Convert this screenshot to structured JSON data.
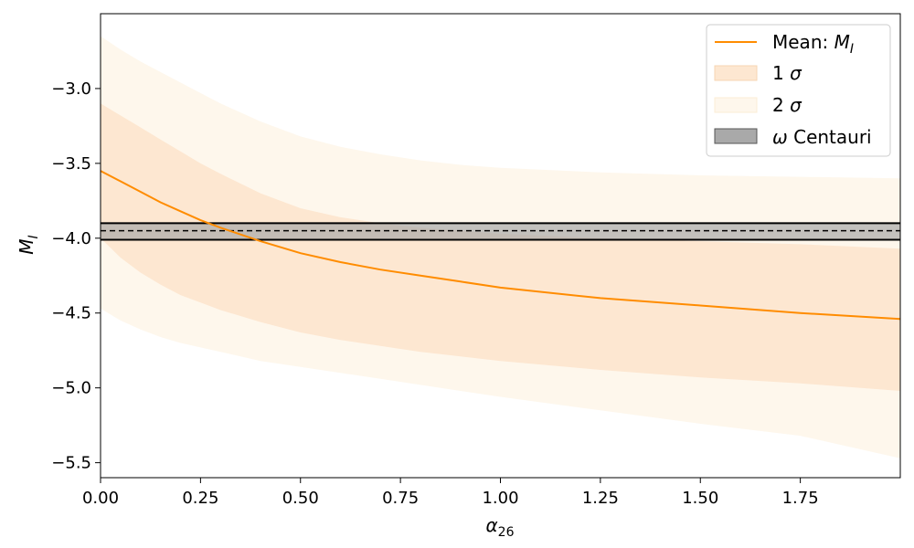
{
  "chart_data": {
    "type": "line",
    "xlabel": "α",
    "xlabel_sub": "26",
    "ylabel": "M",
    "ylabel_sub": "I",
    "xlim": [
      0.0,
      2.0
    ],
    "ylim": [
      -5.6,
      -2.5
    ],
    "x_ticks": [
      0.0,
      0.25,
      0.5,
      0.75,
      1.0,
      1.25,
      1.5,
      1.75
    ],
    "x_tick_labels": [
      "0.00",
      "0.25",
      "0.50",
      "0.75",
      "1.00",
      "1.25",
      "1.50",
      "1.75"
    ],
    "y_ticks": [
      -3.0,
      -3.5,
      -4.0,
      -4.5,
      -5.0,
      -5.5
    ],
    "y_tick_labels": [
      "−3.0",
      "−3.5",
      "−4.0",
      "−4.5",
      "−5.0",
      "−5.5"
    ],
    "grid": false,
    "legend_position": "top-right",
    "x": [
      0.0,
      0.05,
      0.1,
      0.15,
      0.2,
      0.25,
      0.3,
      0.4,
      0.5,
      0.6,
      0.7,
      0.8,
      0.9,
      1.0,
      1.25,
      1.5,
      1.75,
      2.0
    ],
    "series": [
      {
        "name": "Mean: ",
        "name_italic": "M",
        "name_sub": "I",
        "role": "mean",
        "color": "#ff8c00",
        "values": [
          -3.55,
          -3.62,
          -3.69,
          -3.76,
          -3.82,
          -3.88,
          -3.93,
          -4.02,
          -4.1,
          -4.16,
          -4.21,
          -4.25,
          -4.29,
          -4.33,
          -4.4,
          -4.45,
          -4.5,
          -4.54
        ]
      },
      {
        "name": "1 ",
        "name_italic": "σ",
        "role": "band",
        "color": "#fde7d1",
        "lower": [
          -4.0,
          -4.13,
          -4.23,
          -4.31,
          -4.38,
          -4.43,
          -4.48,
          -4.56,
          -4.63,
          -4.68,
          -4.72,
          -4.76,
          -4.79,
          -4.82,
          -4.88,
          -4.93,
          -4.97,
          -5.02
        ],
        "upper": [
          -3.1,
          -3.18,
          -3.26,
          -3.34,
          -3.42,
          -3.5,
          -3.57,
          -3.7,
          -3.8,
          -3.86,
          -3.9,
          -3.93,
          -3.95,
          -3.97,
          -4.0,
          -4.02,
          -4.04,
          -4.07
        ]
      },
      {
        "name": "2 ",
        "name_italic": "σ",
        "role": "band",
        "color": "#fef7ec",
        "lower": [
          -4.47,
          -4.55,
          -4.61,
          -4.66,
          -4.7,
          -4.73,
          -4.76,
          -4.82,
          -4.86,
          -4.9,
          -4.94,
          -4.98,
          -5.02,
          -5.06,
          -5.15,
          -5.24,
          -5.32,
          -5.47
        ],
        "upper": [
          -2.65,
          -2.74,
          -2.82,
          -2.89,
          -2.96,
          -3.03,
          -3.1,
          -3.22,
          -3.32,
          -3.39,
          -3.44,
          -3.48,
          -3.51,
          -3.53,
          -3.56,
          -3.58,
          -3.59,
          -3.6
        ]
      },
      {
        "name": "",
        "name_italic": "ω",
        "name_suffix": " Centauri",
        "role": "hband",
        "color": "#a9a9a9",
        "center": -3.95,
        "lower": -4.01,
        "upper": -3.9
      }
    ]
  }
}
